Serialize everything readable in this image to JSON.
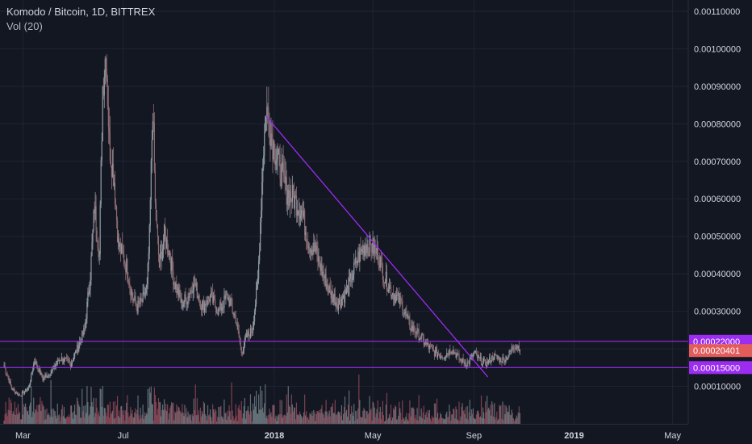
{
  "legend": {
    "symbol": "Komodo / Bitcoin, 1D, BITTREX",
    "volume": "Vol (20)"
  },
  "colors": {
    "background": "#131722",
    "grid": "#1f2433",
    "candle_up": "#8f9aa2",
    "candle_down": "#8e6b72",
    "trendline": "#9b2cf0",
    "vol_up": "#7b8a8f",
    "vol_down": "#a05060",
    "current_price_badge": "#e25c5c"
  },
  "chart_data": {
    "type": "candlestick",
    "title": "Komodo / Bitcoin, 1D, BITTREX",
    "y_axis": {
      "min": 0.0,
      "max": 0.00113,
      "ticks": [
        "0.00010000",
        "0.00020000",
        "0.00030000",
        "0.00040000",
        "0.00050000",
        "0.00060000",
        "0.00070000",
        "0.00080000",
        "0.00090000",
        "0.00100000",
        "0.00110000"
      ],
      "tick_values": [
        0.0001,
        0.0002,
        0.0003,
        0.0004,
        0.0005,
        0.0006,
        0.0007,
        0.0008,
        0.0009,
        0.001,
        0.0011
      ]
    },
    "x_axis": {
      "start": "2017-02-01",
      "end": "2019-05-20",
      "labels": [
        {
          "text": "Mar",
          "date": "2017-03-01",
          "bold": false
        },
        {
          "text": "Jul",
          "date": "2017-07-01",
          "bold": false
        },
        {
          "text": "2018",
          "date": "2018-01-01",
          "bold": true
        },
        {
          "text": "May",
          "date": "2018-05-01",
          "bold": false
        },
        {
          "text": "Sep",
          "date": "2018-09-01",
          "bold": false
        },
        {
          "text": "2019",
          "date": "2019-01-01",
          "bold": true
        },
        {
          "text": "May",
          "date": "2019-05-01",
          "bold": false
        }
      ]
    },
    "price_path": [
      [
        "2017-02-06",
        0.000155
      ],
      [
        "2017-02-15",
        9.5e-05
      ],
      [
        "2017-02-25",
        7.5e-05
      ],
      [
        "2017-03-08",
        9.5e-05
      ],
      [
        "2017-03-15",
        0.00017
      ],
      [
        "2017-03-25",
        0.00012
      ],
      [
        "2017-04-05",
        0.00014
      ],
      [
        "2017-04-15",
        0.000175
      ],
      [
        "2017-04-28",
        0.00016
      ],
      [
        "2017-05-08",
        0.00021
      ],
      [
        "2017-05-15",
        0.00025
      ],
      [
        "2017-05-22",
        0.0004
      ],
      [
        "2017-05-27",
        0.00058
      ],
      [
        "2017-06-02",
        0.00045
      ],
      [
        "2017-06-06",
        0.0009
      ],
      [
        "2017-06-10",
        0.001
      ],
      [
        "2017-06-14",
        0.00075
      ],
      [
        "2017-06-20",
        0.00065
      ],
      [
        "2017-06-25",
        0.00048
      ],
      [
        "2017-07-05",
        0.00042
      ],
      [
        "2017-07-12",
        0.00034
      ],
      [
        "2017-07-18",
        0.00031
      ],
      [
        "2017-07-25",
        0.00033
      ],
      [
        "2017-07-30",
        0.00036
      ],
      [
        "2017-08-02",
        0.0005
      ],
      [
        "2017-08-06",
        0.00085
      ],
      [
        "2017-08-09",
        0.00058
      ],
      [
        "2017-08-14",
        0.00042
      ],
      [
        "2017-08-20",
        0.0005
      ],
      [
        "2017-08-26",
        0.00046
      ],
      [
        "2017-09-01",
        0.00038
      ],
      [
        "2017-09-10",
        0.00032
      ],
      [
        "2017-09-18",
        0.00034
      ],
      [
        "2017-09-25",
        0.00038
      ],
      [
        "2017-10-05",
        0.00031
      ],
      [
        "2017-10-15",
        0.00034
      ],
      [
        "2017-10-25",
        0.0003
      ],
      [
        "2017-11-05",
        0.00034
      ],
      [
        "2017-11-15",
        0.00028
      ],
      [
        "2017-11-22",
        0.00019
      ],
      [
        "2017-11-28",
        0.00023
      ],
      [
        "2017-12-05",
        0.00025
      ],
      [
        "2017-12-12",
        0.00038
      ],
      [
        "2017-12-18",
        0.0007
      ],
      [
        "2017-12-22",
        0.00085
      ],
      [
        "2017-12-30",
        0.00075
      ],
      [
        "2018-01-08",
        0.00068
      ],
      [
        "2018-01-16",
        0.00062
      ],
      [
        "2018-01-25",
        0.0006
      ],
      [
        "2018-02-03",
        0.00057
      ],
      [
        "2018-02-12",
        0.00048
      ],
      [
        "2018-02-20",
        0.00046
      ],
      [
        "2018-03-01",
        0.0004
      ],
      [
        "2018-03-10",
        0.00035
      ],
      [
        "2018-03-20",
        0.00032
      ],
      [
        "2018-04-01",
        0.00036
      ],
      [
        "2018-04-12",
        0.00044
      ],
      [
        "2018-04-22",
        0.00048
      ],
      [
        "2018-05-01",
        0.00047
      ],
      [
        "2018-05-08",
        0.00045
      ],
      [
        "2018-05-15",
        0.00039
      ],
      [
        "2018-05-25",
        0.00035
      ],
      [
        "2018-06-05",
        0.00032
      ],
      [
        "2018-06-15",
        0.00026
      ],
      [
        "2018-06-25",
        0.00024
      ],
      [
        "2018-07-05",
        0.00021
      ],
      [
        "2018-07-15",
        0.00019
      ],
      [
        "2018-07-25",
        0.00018
      ],
      [
        "2018-08-05",
        0.0002
      ],
      [
        "2018-08-15",
        0.00017
      ],
      [
        "2018-08-25",
        0.00016
      ],
      [
        "2018-09-01",
        0.00019
      ],
      [
        "2018-09-08",
        0.00017
      ],
      [
        "2018-09-16",
        0.00016
      ],
      [
        "2018-09-25",
        0.00018
      ],
      [
        "2018-10-05",
        0.00017
      ],
      [
        "2018-10-12",
        0.00018
      ],
      [
        "2018-10-20",
        0.00021
      ],
      [
        "2018-10-27",
        0.000205
      ]
    ],
    "trendline": {
      "from": {
        "date": "2017-12-22",
        "price": 0.00082
      },
      "to": {
        "date": "2018-09-18",
        "price": 0.000125
      }
    },
    "horizontal_lines": [
      {
        "price": 0.00022,
        "label": "0.00022000"
      },
      {
        "price": 0.00015,
        "label": "0.00015000"
      }
    ],
    "current_price": {
      "price": 0.00020401,
      "label": "0.00020401"
    }
  }
}
